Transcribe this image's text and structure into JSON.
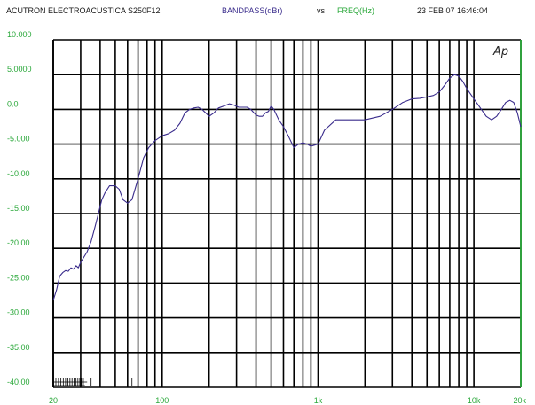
{
  "header": {
    "title": "ACUTRON ELECTROACUSTICA S250F12",
    "y_measure": "BANDPASS(dBr)",
    "vs": "vs",
    "x_measure": "FREQ(Hz)",
    "timestamp": "23 FEB 07 16:46:04"
  },
  "logo_text": "Ap",
  "colors": {
    "trace": "#3a2c8c",
    "grid": "#000000",
    "tick_labels": "#2aa83a",
    "axis_right": "#2aa83a"
  },
  "chart_data": {
    "type": "line",
    "x_scale": "log",
    "xlim": [
      20,
      20000
    ],
    "ylim": [
      -40,
      10
    ],
    "grid": true,
    "y_ticks": [
      {
        "value": 10,
        "label": "10.000"
      },
      {
        "value": 5,
        "label": "5.0000"
      },
      {
        "value": 0,
        "label": "0.0"
      },
      {
        "value": -5,
        "label": "-5.000"
      },
      {
        "value": -10,
        "label": "-10.00"
      },
      {
        "value": -15,
        "label": "-15.00"
      },
      {
        "value": -20,
        "label": "-20.00"
      },
      {
        "value": -25,
        "label": "-25.00"
      },
      {
        "value": -30,
        "label": "-30.00"
      },
      {
        "value": -35,
        "label": "-35.00"
      },
      {
        "value": -40,
        "label": "-40.00"
      }
    ],
    "x_ticks": [
      {
        "value": 20,
        "label": "20"
      },
      {
        "value": 100,
        "label": "100"
      },
      {
        "value": 1000,
        "label": "1k"
      },
      {
        "value": 10000,
        "label": "10k"
      },
      {
        "value": 20000,
        "label": "20k"
      }
    ],
    "x_gridlines": [
      20,
      30,
      40,
      50,
      60,
      70,
      80,
      90,
      100,
      200,
      300,
      400,
      500,
      600,
      700,
      800,
      900,
      1000,
      2000,
      3000,
      4000,
      5000,
      6000,
      7000,
      8000,
      9000,
      10000,
      20000
    ],
    "series": [
      {
        "x": [
          20,
          21,
          22,
          23,
          24,
          25,
          26,
          27,
          28,
          29,
          30,
          31,
          33,
          35,
          37,
          39,
          41,
          43,
          46,
          50,
          53,
          56,
          60,
          64,
          70,
          76,
          82,
          90,
          100,
          110,
          120,
          130,
          140,
          150,
          160,
          170,
          180,
          190,
          200,
          215,
          230,
          250,
          270,
          290,
          310,
          330,
          350,
          370,
          400,
          420,
          440,
          460,
          480,
          500,
          520,
          560,
          600,
          650,
          700,
          750,
          800,
          850,
          900,
          1000,
          1100,
          1300,
          1600,
          2000,
          2500,
          3000,
          3500,
          4000,
          4500,
          5000,
          5500,
          6000,
          6500,
          7000,
          7500,
          8000,
          8500,
          9000,
          10000,
          11000,
          12000,
          13000,
          14000,
          15000,
          16000,
          17000,
          18000,
          19000,
          20000
        ],
        "y": [
          -27.5,
          -26,
          -24,
          -23.5,
          -23.2,
          -23.3,
          -22.8,
          -23,
          -22.5,
          -22.8,
          -22,
          -21.5,
          -20.5,
          -19,
          -17,
          -15,
          -13,
          -12,
          -11,
          -11,
          -11.5,
          -13,
          -13.5,
          -13,
          -10,
          -7,
          -5.5,
          -4.5,
          -3.8,
          -3.5,
          -3,
          -2,
          -0.5,
          0,
          0.2,
          0.3,
          0,
          -0.5,
          -1,
          -0.5,
          0.2,
          0.5,
          0.8,
          0.6,
          0.3,
          0.3,
          0.3,
          0,
          -0.8,
          -1,
          -1,
          -0.5,
          -0.3,
          0.5,
          0,
          -1.5,
          -2.5,
          -4,
          -5.5,
          -5,
          -4.8,
          -5,
          -5.3,
          -5,
          -3,
          -1.5,
          -1.5,
          -1.5,
          -1,
          0,
          1,
          1.5,
          1.6,
          1.8,
          2,
          2.5,
          3.5,
          4.5,
          5,
          4.8,
          4,
          3,
          1.5,
          0.2,
          -1,
          -1.5,
          -1,
          0,
          1,
          1.3,
          1,
          -0.5,
          -2.5
        ]
      }
    ]
  }
}
